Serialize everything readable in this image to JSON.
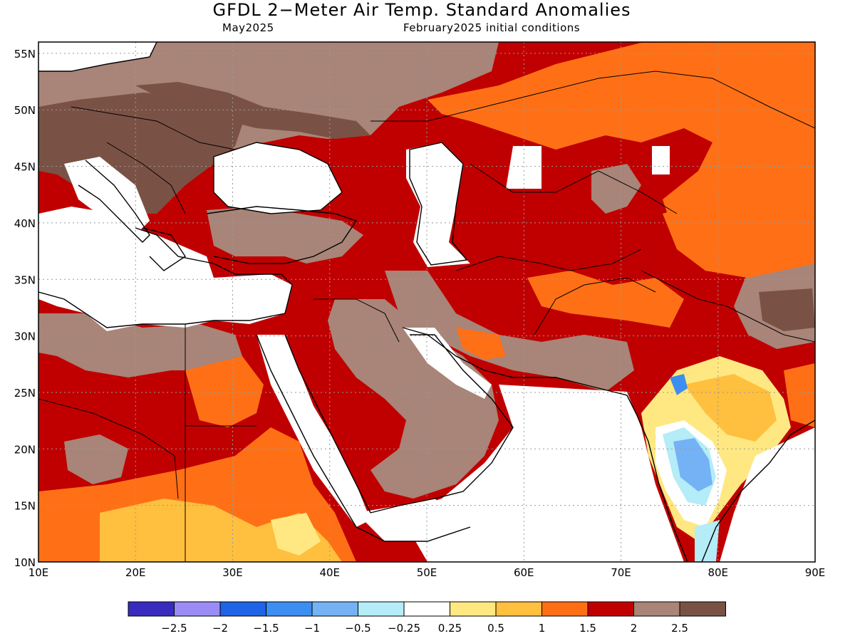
{
  "header": {
    "title": "GFDL 2−Meter Air Temp. Standard Anomalies",
    "valid_month": "May2025",
    "init": "February2025 initial conditions"
  },
  "map": {
    "lon_range": [
      10,
      90
    ],
    "lat_range": [
      10,
      56
    ],
    "lat_ticks": [
      "10N",
      "15N",
      "20N",
      "25N",
      "30N",
      "35N",
      "40N",
      "45N",
      "50N",
      "55N"
    ],
    "lon_ticks": [
      "10E",
      "20E",
      "30E",
      "40E",
      "50E",
      "60E",
      "70E",
      "80E",
      "90E"
    ],
    "gridlines": "dotted"
  },
  "colorbar": {
    "colors": [
      "#3a2bbf",
      "#9b8cf5",
      "#1f63e6",
      "#3c8ef0",
      "#74b2f5",
      "#b4ecf7",
      "#ffffff",
      "#ffe882",
      "#ffbf3f",
      "#ff7016",
      "#c00000",
      "#a98478",
      "#7a5245"
    ],
    "labels": [
      "−2.5",
      "−2",
      "−1.5",
      "−1",
      "−0.5",
      "−0.25",
      "0.25",
      "0.5",
      "1",
      "1.5",
      "2",
      "2.5"
    ]
  },
  "anomaly_fields": {
    "light_brown_2_to_2_5": "#a98478",
    "dark_brown_above_2_5": "#7a5245",
    "dark_red_1_5_to_2": "#c00000",
    "orange_1_to_1_5": "#ff7016",
    "light_orange_0_5_to_1": "#ffbf3f",
    "yellow_0_25_to_0_5": "#ffe882",
    "neutral": "#ffffff",
    "cyan_neg": "#b4ecf7",
    "light_blue_neg": "#74b2f5",
    "blue_neg": "#3c8ef0"
  }
}
